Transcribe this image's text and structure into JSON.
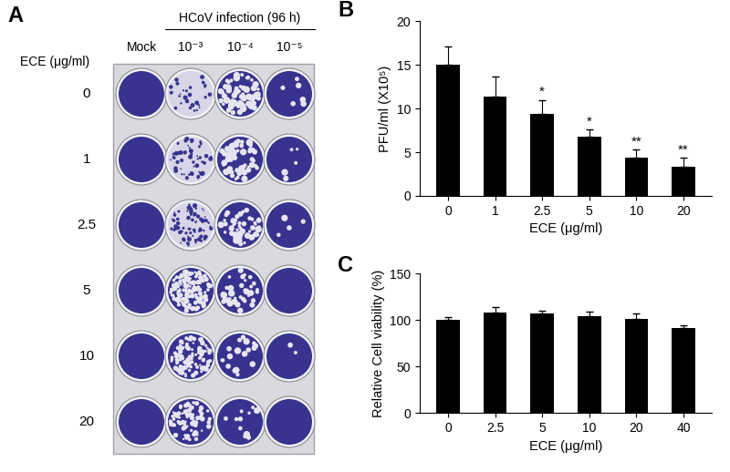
{
  "plate": {
    "title": "A",
    "header": "HCoV infection (96 h)",
    "row_title": "ECE (μg/ml)",
    "columns": [
      "Mock",
      "10⁻³",
      "10⁻⁴",
      "10⁻⁵"
    ],
    "rows": [
      "0",
      "1",
      "2.5",
      "5",
      "10",
      "20"
    ]
  },
  "chart_data": [
    {
      "type": "bar",
      "title": "B",
      "categories": [
        "0",
        "1",
        "2.5",
        "5",
        "10",
        "20"
      ],
      "values": [
        15.0,
        11.4,
        9.4,
        6.8,
        4.4,
        3.3
      ],
      "errors": [
        2.1,
        2.3,
        1.6,
        0.8,
        0.9,
        1.1
      ],
      "annotations": [
        null,
        null,
        "*",
        "*",
        "**",
        "**"
      ],
      "color": "#000000",
      "x_label": "ECE (μg/ml)",
      "y_label": "PFU/ml (X10⁵)",
      "ylim": [
        0,
        20
      ],
      "yticks": [
        0,
        5,
        10,
        15,
        20
      ]
    },
    {
      "type": "bar",
      "title": "C",
      "categories": [
        "0",
        "2.5",
        "5",
        "10",
        "20",
        "40"
      ],
      "values": [
        100,
        108,
        107,
        104,
        101,
        92
      ],
      "errors": [
        3,
        6,
        3,
        5,
        6,
        2
      ],
      "color": "#000000",
      "x_label": "ECE (μg/ml)",
      "y_label": "Relative Cell viability (%)",
      "ylim": [
        0,
        150
      ],
      "yticks": [
        0,
        50,
        100,
        150
      ]
    }
  ]
}
